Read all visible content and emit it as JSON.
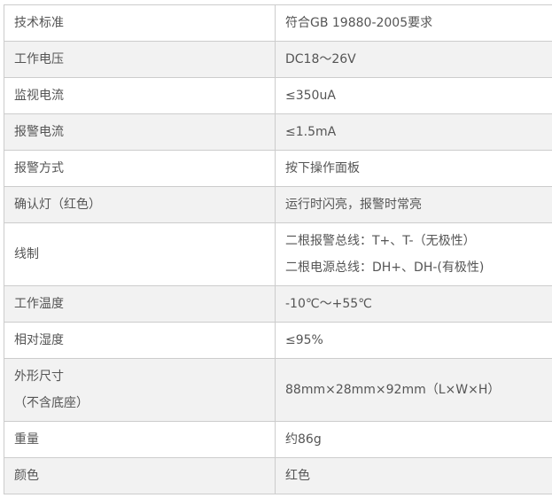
{
  "rows": [
    {
      "label": "技术标准",
      "value": [
        "符合GB 19880-2005要求"
      ]
    },
    {
      "label": "工作电压",
      "value": [
        "DC18～26V"
      ]
    },
    {
      "label": "监视电流",
      "value": [
        "≤350uA"
      ]
    },
    {
      "label": "报警电流",
      "value": [
        "≤1.5mA"
      ]
    },
    {
      "label": "报警方式",
      "value": [
        "按下操作面板"
      ]
    },
    {
      "label": "确认灯（红色）",
      "value": [
        "运行时闪亮，报警时常亮"
      ]
    },
    {
      "label": "线制",
      "value": [
        "二根报警总线：T+、T-（无极性）",
        "二根电源总线：DH+、DH-(有极性)"
      ]
    },
    {
      "label": "工作温度",
      "value": [
        "-10℃～+55℃"
      ]
    },
    {
      "label": "相对湿度",
      "value": [
        "≤95%"
      ]
    },
    {
      "label": "外形尺寸\n（不含底座）",
      "label_lines": [
        "外形尺寸",
        "（不含底座）"
      ],
      "value": [
        "88mm×28mm×92mm（L×W×H）"
      ]
    },
    {
      "label": "重量",
      "value": [
        "约86g"
      ]
    },
    {
      "label": "颜色",
      "value": [
        "红色"
      ]
    }
  ]
}
